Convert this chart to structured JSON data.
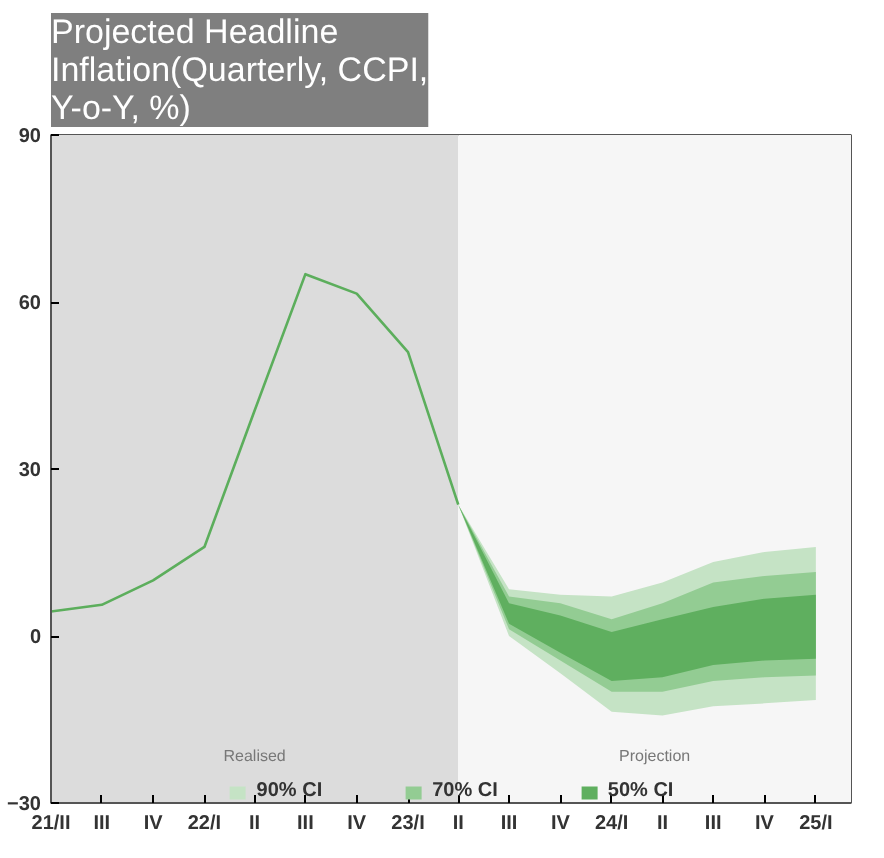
{
  "chart_data": {
    "type": "line",
    "title": "Projected Headline Inflation(Quarterly, CCPI, Y-o-Y, %)",
    "xlim": [
      "2021-04-01",
      "2025-03-05"
    ],
    "xticks": [
      {
        "value": "2021-04-01",
        "label": "21/II"
      },
      {
        "value": "2021-07-01",
        "label": "III"
      },
      {
        "value": "2021-10-01",
        "label": "IV"
      },
      {
        "value": "2022-01-01",
        "label": "22/I"
      },
      {
        "value": "2022-04-01",
        "label": "II"
      },
      {
        "value": "2022-07-01",
        "label": "III"
      },
      {
        "value": "2022-10-01",
        "label": "IV"
      },
      {
        "value": "2023-01-01",
        "label": "23/I"
      },
      {
        "value": "2023-04-01",
        "label": "II"
      },
      {
        "value": "2023-07-01",
        "label": "III"
      },
      {
        "value": "2023-10-01",
        "label": "IV"
      },
      {
        "value": "2024-01-01",
        "label": "24/I"
      },
      {
        "value": "2024-04-01",
        "label": "II"
      },
      {
        "value": "2024-07-01",
        "label": "III"
      },
      {
        "value": "2024-10-01",
        "label": "IV"
      },
      {
        "value": "2025-01-01",
        "label": "25/I"
      }
    ],
    "ylim": [
      -30,
      90
    ],
    "yticks": [
      -30,
      0,
      30,
      60,
      90
    ],
    "series": [
      {
        "type": "area",
        "name": "90% CI",
        "color": "#c5e3c5",
        "x": [
          "2023-04-01",
          "2023-07-01",
          "2023-10-01",
          "2024-01-01",
          "2024-04-01",
          "2024-07-01",
          "2024-10-01",
          "2025-01-01"
        ],
        "values": [
          null,
          null,
          null,
          null,
          null,
          null,
          null,
          null
        ],
        "lower": [
          23.6,
          0,
          -6.7,
          -13.6,
          -14.3,
          -12.6,
          -12.1,
          -11.5
        ],
        "upper": [
          23.6,
          8.4,
          7.4,
          7.1,
          9.6,
          13.3,
          15.1,
          16
        ]
      },
      {
        "type": "area",
        "name": "70% CI",
        "color": "#93cc93",
        "x": [
          "2023-04-01",
          "2023-07-01",
          "2023-10-01",
          "2024-01-01",
          "2024-04-01",
          "2024-07-01",
          "2024-10-01",
          "2025-01-01"
        ],
        "values": [
          null,
          null,
          null,
          null,
          null,
          null,
          null,
          null
        ],
        "lower": [
          23.6,
          1.2,
          -4.4,
          -10,
          -10,
          -8.1,
          -7.4,
          -7.1
        ],
        "upper": [
          23.6,
          7.1,
          5.9,
          3,
          5.9,
          9.6,
          10.8,
          11.5
        ]
      },
      {
        "type": "area",
        "name": "50% CI",
        "color": "#5faf5f",
        "x": [
          "2023-04-01",
          "2023-07-01",
          "2023-10-01",
          "2024-01-01",
          "2024-04-01",
          "2024-07-01",
          "2024-10-01",
          "2025-01-01"
        ],
        "values": [
          null,
          null,
          null,
          null,
          null,
          null,
          null,
          null
        ],
        "lower": [
          23.6,
          2.2,
          -3,
          -8.1,
          -7.4,
          -5.2,
          -4.4,
          -4.1
        ],
        "upper": [
          23.6,
          5.9,
          3.7,
          0.7,
          3,
          5.2,
          6.7,
          7.4
        ]
      },
      {
        "color": "#5cae5c",
        "x": [
          "2021-04-01",
          "2021-07-01",
          "2021-10-01",
          "2022-01-01",
          "2022-04-01",
          "2022-07-01",
          "2022-10-01",
          "2023-01-01",
          "2023-04-01"
        ],
        "values": [
          4.4,
          5.6,
          10,
          16,
          40.5,
          65,
          61.5,
          51,
          23.6
        ]
      }
    ],
    "bands": [
      {
        "axis": "x",
        "from": "2021-04-01",
        "to": "2023-04-01",
        "label": "Realised",
        "color": "#dcdcdc"
      },
      {
        "axis": "x",
        "from": "2023-04-01",
        "to": "2025-03-05",
        "label": "Projection",
        "color": "#f6f6f6"
      }
    ],
    "grid": false,
    "legend": "bottom"
  }
}
